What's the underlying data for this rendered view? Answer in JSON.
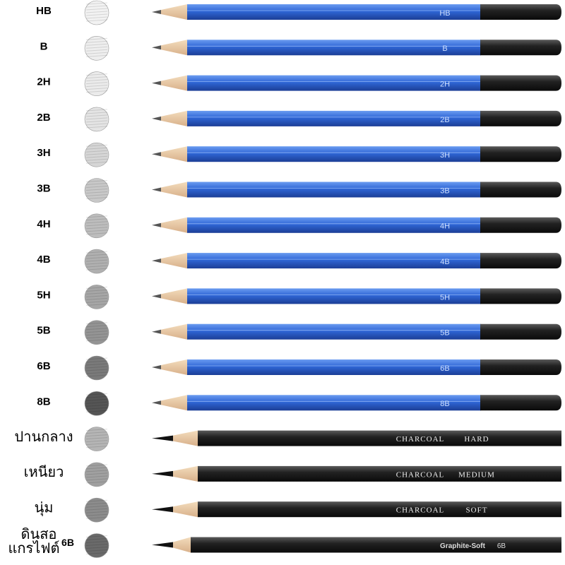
{
  "rows": [
    {
      "label": "HB",
      "kind": "blue",
      "imprint": "HB",
      "swatch": "#f2f2f2"
    },
    {
      "label": "B",
      "kind": "blue",
      "imprint": "B",
      "swatch": "#eeeeee"
    },
    {
      "label": "2H",
      "kind": "blue",
      "imprint": "2H",
      "swatch": "#ebebeb"
    },
    {
      "label": "2B",
      "kind": "blue",
      "imprint": "2B",
      "swatch": "#e4e4e4"
    },
    {
      "label": "3H",
      "kind": "blue",
      "imprint": "3H",
      "swatch": "#d6d6d6"
    },
    {
      "label": "3B",
      "kind": "blue",
      "imprint": "3B",
      "swatch": "#c8c8c8"
    },
    {
      "label": "4H",
      "kind": "blue",
      "imprint": "4H",
      "swatch": "#bdbdbd"
    },
    {
      "label": "4B",
      "kind": "blue",
      "imprint": "4B",
      "swatch": "#b0b0b0"
    },
    {
      "label": "5H",
      "kind": "blue",
      "imprint": "5H",
      "swatch": "#a6a6a6"
    },
    {
      "label": "5B",
      "kind": "blue",
      "imprint": "5B",
      "swatch": "#949494"
    },
    {
      "label": "6B",
      "kind": "blue",
      "imprint": "6B",
      "swatch": "#7a7a7a"
    },
    {
      "label": "8B",
      "kind": "blue",
      "imprint": "8B",
      "swatch": "#555555"
    },
    {
      "label": "ปานกลาง",
      "kind": "charcoal",
      "brand": "CHARCOAL",
      "grade": "HARD",
      "swatch": "#b5b5b5"
    },
    {
      "label": "เหนียว",
      "kind": "charcoal",
      "brand": "CHARCOAL",
      "grade": "MEDIUM",
      "swatch": "#a0a0a0"
    },
    {
      "label": "นุ่ม",
      "kind": "charcoal",
      "brand": "CHARCOAL",
      "grade": "SOFT",
      "swatch": "#8c8c8c"
    },
    {
      "label": [
        "ดินสอ",
        "แกรไฟต์"
      ],
      "label_suffix": "6B",
      "kind": "graphite",
      "brand": "Graphite-Soft",
      "grade": "6B",
      "swatch": "#6a6a6a"
    }
  ]
}
